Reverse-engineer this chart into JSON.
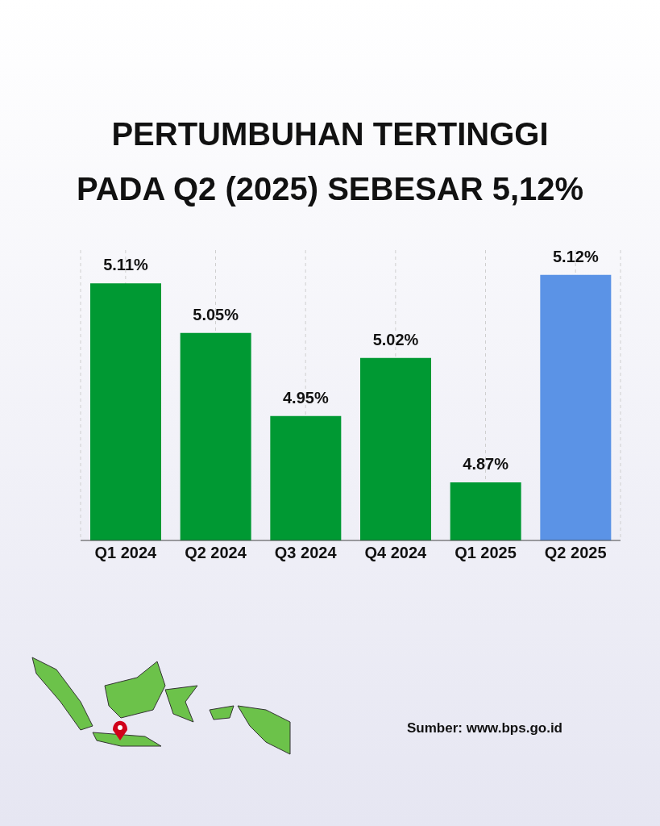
{
  "chart_data": {
    "type": "bar",
    "title": "PERTUMBUHAN TERTINGGI\nPADA Q2 (2025) SEBESAR 5,12%",
    "categories": [
      "Q1 2024",
      "Q2 2024",
      "Q3 2024",
      "Q4 2024",
      "Q1 2025",
      "Q2 2025"
    ],
    "values": [
      5.11,
      5.05,
      4.95,
      5.02,
      4.87,
      5.12
    ],
    "colors": [
      "#009933",
      "#009933",
      "#009933",
      "#009933",
      "#009933",
      "#5b93e6"
    ],
    "value_labels": [
      "5.11%",
      "5.05%",
      "4.95%",
      "5.02%",
      "4.87%",
      "5.12%"
    ],
    "ylim": [
      4.8,
      5.15
    ],
    "tick_labels": "x",
    "grid": "x",
    "annotations": [
      "Sumber: www.bps.go.id"
    ]
  }
}
